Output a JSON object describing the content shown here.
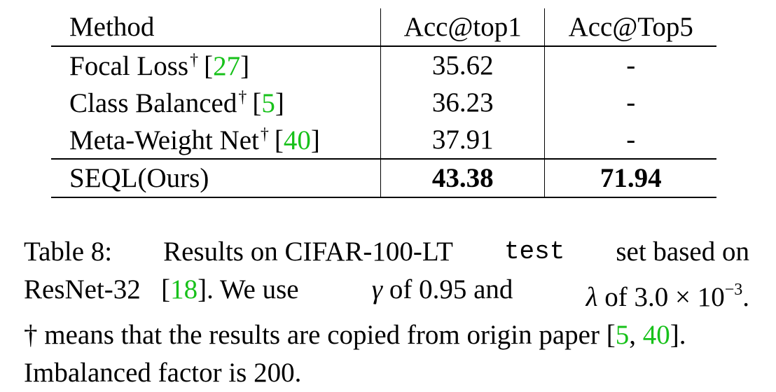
{
  "table": {
    "headers": {
      "method": "Method",
      "top1": "Acc@top1",
      "top5": "Acc@Top5"
    },
    "rows": [
      {
        "method": "Focal Loss",
        "dagger": "†",
        "cite": "27",
        "top1": "35.62",
        "top5": "-"
      },
      {
        "method": "Class Balanced",
        "dagger": "†",
        "cite": "5",
        "top1": "36.23",
        "top5": "-"
      },
      {
        "method": "Meta-Weight Net",
        "dagger": "†",
        "cite": "40",
        "top1": "37.91",
        "top5": "-"
      }
    ],
    "ours": {
      "method": "SEQL(Ours)",
      "top1": "43.38",
      "top5": "71.94"
    }
  },
  "caption": {
    "label": "Table 8:",
    "l1_a": "Results on CIFAR-100-LT",
    "l1_code": "test",
    "l1_b": "set based on",
    "l2_a": "ResNet-32",
    "l2_cite": "18",
    "l2_b": ". We use",
    "gamma": "γ",
    "l2_c": "of 0.95 and",
    "lambda": "λ",
    "l2_d": "of 3.0 × 10",
    "l2_exp": "−3",
    "l2_end": ".",
    "l3_a": "† means that the results are copied from origin paper [",
    "l3_cite1": "5",
    "l3_sep": ", ",
    "l3_cite2": "40",
    "l3_end": "].",
    "l4": "Imbalanced factor is 200."
  },
  "colors": {
    "citation": "#17c11a",
    "text": "#000000"
  }
}
